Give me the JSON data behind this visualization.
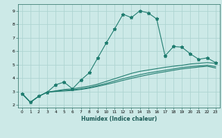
{
  "xlabel": "Humidex (Indice chaleur)",
  "ylabel": "",
  "background_color": "#cce9e7",
  "grid_color": "#aed4d1",
  "line_color": "#1e7b6e",
  "xlim": [
    -0.5,
    23.5
  ],
  "ylim": [
    1.8,
    9.5
  ],
  "xticks": [
    0,
    1,
    2,
    3,
    4,
    5,
    6,
    7,
    8,
    9,
    10,
    11,
    12,
    13,
    14,
    15,
    16,
    17,
    18,
    19,
    20,
    21,
    22,
    23
  ],
  "yticks": [
    2,
    3,
    4,
    5,
    6,
    7,
    8,
    9
  ],
  "curves": [
    {
      "x": [
        0,
        1,
        2,
        3,
        4,
        5,
        6,
        7,
        8,
        9,
        10,
        11,
        12,
        13,
        14,
        15,
        16,
        17,
        18,
        19,
        20,
        21,
        22,
        23
      ],
      "y": [
        2.85,
        2.2,
        2.65,
        2.95,
        3.5,
        3.7,
        3.2,
        3.85,
        4.4,
        5.5,
        6.6,
        7.65,
        8.75,
        8.5,
        9.0,
        8.85,
        8.4,
        5.65,
        6.35,
        6.3,
        5.8,
        5.4,
        5.5,
        5.15
      ],
      "marker": "*",
      "markersize": 3.5
    },
    {
      "x": [
        0,
        1,
        2,
        3,
        4,
        5,
        6,
        7,
        8,
        9,
        10,
        11,
        12,
        13,
        14,
        15,
        16,
        17,
        18,
        19,
        20,
        21,
        22,
        23
      ],
      "y": [
        2.85,
        2.2,
        2.65,
        2.95,
        3.05,
        3.15,
        3.2,
        3.3,
        3.4,
        3.55,
        3.75,
        3.95,
        4.15,
        4.35,
        4.5,
        4.6,
        4.7,
        4.8,
        4.88,
        4.95,
        5.05,
        5.1,
        5.15,
        5.1
      ],
      "marker": "None",
      "markersize": 0
    },
    {
      "x": [
        0,
        1,
        2,
        3,
        4,
        5,
        6,
        7,
        8,
        9,
        10,
        11,
        12,
        13,
        14,
        15,
        16,
        17,
        18,
        19,
        20,
        21,
        22,
        23
      ],
      "y": [
        2.85,
        2.2,
        2.65,
        2.95,
        3.02,
        3.08,
        3.12,
        3.2,
        3.3,
        3.45,
        3.6,
        3.78,
        3.95,
        4.1,
        4.25,
        4.38,
        4.48,
        4.58,
        4.68,
        4.78,
        4.85,
        4.9,
        4.95,
        4.85
      ],
      "marker": "None",
      "markersize": 0
    },
    {
      "x": [
        0,
        1,
        2,
        3,
        4,
        5,
        6,
        7,
        8,
        9,
        10,
        11,
        12,
        13,
        14,
        15,
        16,
        17,
        18,
        19,
        20,
        21,
        22,
        23
      ],
      "y": [
        2.85,
        2.2,
        2.65,
        2.95,
        3.0,
        3.04,
        3.08,
        3.15,
        3.25,
        3.38,
        3.52,
        3.67,
        3.83,
        3.98,
        4.12,
        4.25,
        4.37,
        4.47,
        4.58,
        4.68,
        4.75,
        4.82,
        4.88,
        4.75
      ],
      "marker": "None",
      "markersize": 0
    }
  ]
}
